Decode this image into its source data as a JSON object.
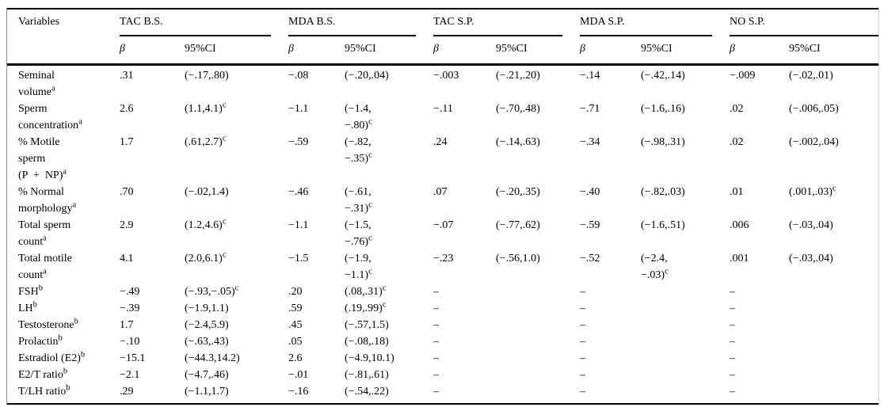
{
  "table": {
    "variables_header": "Variables",
    "sub_headers": {
      "beta": "β",
      "ci": "95%CI"
    },
    "groups": [
      {
        "label": "TAC B.S."
      },
      {
        "label": "MDA B.S."
      },
      {
        "label": "TAC S.P."
      },
      {
        "label": "MDA S.P."
      },
      {
        "label": "NO S.P."
      }
    ],
    "footnote_markers": {
      "seminal_group": "a",
      "hormone_group": "b",
      "significant": "c"
    },
    "rows": [
      {
        "variable": "Seminal\nvolume",
        "variable_sup": "a",
        "cells": [
          {
            "beta": ".31",
            "ci": "(−.17,.80)"
          },
          {
            "beta": "−.08",
            "ci": "(−.20,.04)"
          },
          {
            "beta": "−.003",
            "ci": "(−.21,.20)"
          },
          {
            "beta": "−.14",
            "ci": "(−.42,.14)"
          },
          {
            "beta": "−.009",
            "ci": "(−.02,.01)"
          }
        ]
      },
      {
        "variable": "Sperm\nconcentration",
        "variable_sup": "a",
        "cells": [
          {
            "beta": "2.6",
            "ci": "(1.1,4.1)",
            "ci_sup": "c"
          },
          {
            "beta": "−1.1",
            "ci": "(−1.4,\n−.80)",
            "ci_sup": "c"
          },
          {
            "beta": "−.11",
            "ci": "(−.70,.48)"
          },
          {
            "beta": "−.71",
            "ci": "(−1.6,.16)"
          },
          {
            "beta": ".02",
            "ci": "(−.006,.05)"
          }
        ]
      },
      {
        "variable": "% Motile\nsperm\n(P  +  NP)",
        "variable_sup": "a",
        "cells": [
          {
            "beta": "1.7",
            "ci": "(.61,2.7)",
            "ci_sup": "c"
          },
          {
            "beta": "−.59",
            "ci": "(−.82,\n−.35)",
            "ci_sup": "c"
          },
          {
            "beta": ".24",
            "ci": "(−.14,.63)"
          },
          {
            "beta": "−.34",
            "ci": "(−.98,.31)"
          },
          {
            "beta": ".02",
            "ci": "(−.002,.04)"
          }
        ]
      },
      {
        "variable": "% Normal\nmorphology",
        "variable_sup": "a",
        "cells": [
          {
            "beta": ".70",
            "ci": "(−.02,1.4)"
          },
          {
            "beta": "−.46",
            "ci": "(−.61,\n−.31)",
            "ci_sup": "c"
          },
          {
            "beta": ".07",
            "ci": "(−.20,.35)"
          },
          {
            "beta": "−.40",
            "ci": "(−.82,.03)"
          },
          {
            "beta": ".01",
            "ci": "(.001,.03)",
            "ci_sup": "c"
          }
        ]
      },
      {
        "variable": "Total sperm\ncount",
        "variable_sup": "a",
        "cells": [
          {
            "beta": "2.9",
            "ci": "(1.2,4.6)",
            "ci_sup": "c"
          },
          {
            "beta": "−1.1",
            "ci": "(−1.5,\n−.76)",
            "ci_sup": "c"
          },
          {
            "beta": "−.07",
            "ci": "(−.77,.62)"
          },
          {
            "beta": "−.59",
            "ci": "(−1.6,.51)"
          },
          {
            "beta": ".006",
            "ci": "(−.03,.04)"
          }
        ]
      },
      {
        "variable": "Total motile\ncount",
        "variable_sup": "a",
        "cells": [
          {
            "beta": "4.1",
            "ci": "(2.0,6.1)",
            "ci_sup": "c"
          },
          {
            "beta": "−1.5",
            "ci": "(−1.9,\n−1.1)",
            "ci_sup": "c"
          },
          {
            "beta": "−.23",
            "ci": "(−.56,1.0)"
          },
          {
            "beta": "−.52",
            "ci": "(−2.4,\n−.03)",
            "ci_sup": "c"
          },
          {
            "beta": ".001",
            "ci": "(−.03,.04)"
          }
        ]
      },
      {
        "variable": "FSH",
        "variable_sup": "b",
        "cells": [
          {
            "beta": "−.49",
            "ci": "(−.93,−.05)",
            "ci_sup": "c"
          },
          {
            "beta": ".20",
            "ci": "(.08,.31)",
            "ci_sup": "c"
          },
          {
            "beta": "–",
            "ci": ""
          },
          {
            "beta": "–",
            "ci": ""
          },
          {
            "beta": "–",
            "ci": ""
          }
        ]
      },
      {
        "variable": "LH",
        "variable_sup": "b",
        "cells": [
          {
            "beta": "−.39",
            "ci": "(−1.9,1.1)"
          },
          {
            "beta": ".59",
            "ci": "(.19,.99)",
            "ci_sup": "c"
          },
          {
            "beta": "–",
            "ci": ""
          },
          {
            "beta": "–",
            "ci": ""
          },
          {
            "beta": "–",
            "ci": ""
          }
        ]
      },
      {
        "variable": "Testosterone",
        "variable_sup": "b",
        "cells": [
          {
            "beta": "1.7",
            "ci": "(−2.4,5.9)"
          },
          {
            "beta": ".45",
            "ci": "(−.57,1.5)"
          },
          {
            "beta": "–",
            "ci": ""
          },
          {
            "beta": "–",
            "ci": ""
          },
          {
            "beta": "–",
            "ci": ""
          }
        ]
      },
      {
        "variable": "Prolactin",
        "variable_sup": "b",
        "cells": [
          {
            "beta": "−.10",
            "ci": "(−.63,.43)"
          },
          {
            "beta": ".05",
            "ci": "(−.08,.18)"
          },
          {
            "beta": "–",
            "ci": ""
          },
          {
            "beta": "–",
            "ci": ""
          },
          {
            "beta": "–",
            "ci": ""
          }
        ]
      },
      {
        "variable": "Estradiol (E2)",
        "variable_sup": "b",
        "cells": [
          {
            "beta": "−15.1",
            "ci": "(−44.3,14.2)"
          },
          {
            "beta": "2.6",
            "ci": "(−4.9,10.1)"
          },
          {
            "beta": "–",
            "ci": ""
          },
          {
            "beta": "–",
            "ci": ""
          },
          {
            "beta": "–",
            "ci": ""
          }
        ]
      },
      {
        "variable": "E2/T ratio",
        "variable_sup": "b",
        "cells": [
          {
            "beta": "−2.1",
            "ci": "(−4.7,.46)"
          },
          {
            "beta": "−.01",
            "ci": "(−.81,.61)"
          },
          {
            "beta": "–",
            "ci": ""
          },
          {
            "beta": "–",
            "ci": ""
          },
          {
            "beta": "–",
            "ci": ""
          }
        ]
      },
      {
        "variable": "T/LH ratio",
        "variable_sup": "b",
        "cells": [
          {
            "beta": ".29",
            "ci": "(−1.1,1.7)"
          },
          {
            "beta": "−.16",
            "ci": "(−.54,.22)"
          },
          {
            "beta": "–",
            "ci": ""
          },
          {
            "beta": "–",
            "ci": ""
          },
          {
            "beta": "–",
            "ci": ""
          }
        ]
      }
    ]
  }
}
